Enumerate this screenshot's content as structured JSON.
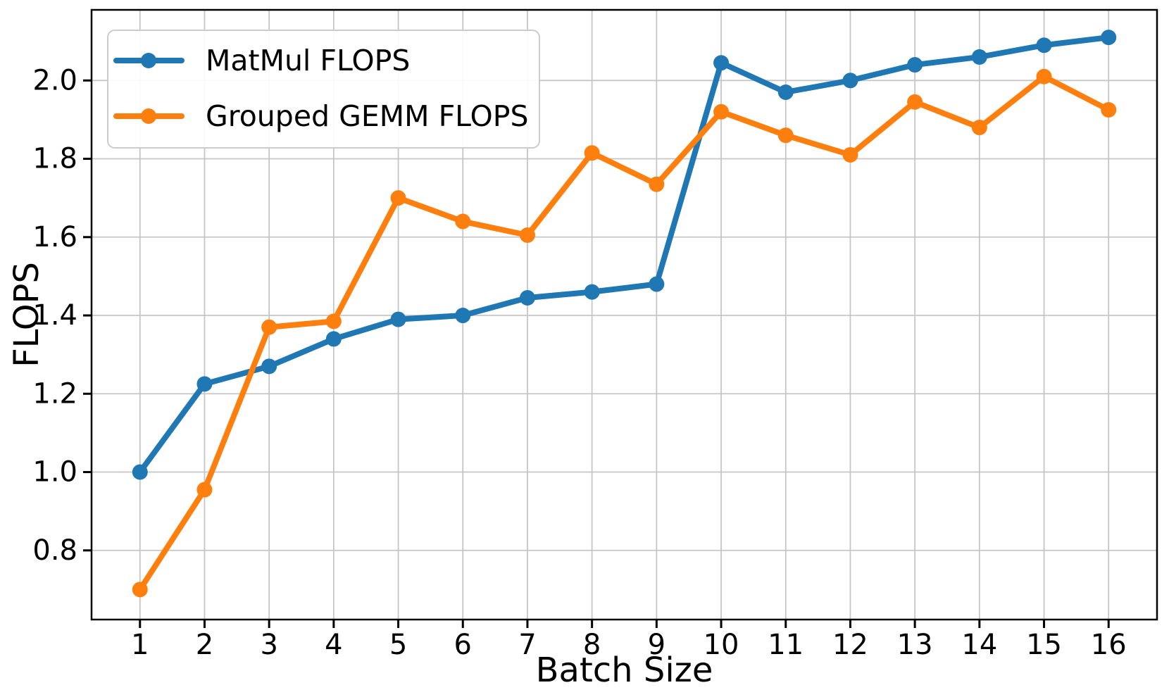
{
  "figure": {
    "background": "#ffffff",
    "type_hint": "matplotlib line chart"
  },
  "chart_data": {
    "type": "line",
    "title": "",
    "xlabel": "Batch Size",
    "ylabel": "FLOPS",
    "x": [
      1,
      2,
      3,
      4,
      5,
      6,
      7,
      8,
      9,
      10,
      11,
      12,
      13,
      14,
      15,
      16
    ],
    "series": [
      {
        "name": "MatMul FLOPS",
        "color": "#1f77b4",
        "values": [
          1.0,
          1.225,
          1.27,
          1.34,
          1.39,
          1.4,
          1.445,
          1.46,
          1.48,
          2.045,
          1.97,
          2.0,
          2.04,
          2.06,
          2.09,
          2.11
        ]
      },
      {
        "name": "Grouped GEMM FLOPS",
        "color": "#ff7f0e",
        "values": [
          0.7,
          0.955,
          1.37,
          1.385,
          1.7,
          1.64,
          1.605,
          1.815,
          1.735,
          1.92,
          1.86,
          1.81,
          1.945,
          1.88,
          2.01,
          1.925
        ]
      }
    ],
    "xlim": [
      0.25,
      16.75
    ],
    "ylim": [
      0.6234,
      2.1803
    ],
    "xticks": [
      1,
      2,
      3,
      4,
      5,
      6,
      7,
      8,
      9,
      10,
      11,
      12,
      13,
      14,
      15,
      16
    ],
    "yticks": [
      0.8,
      1.0,
      1.2,
      1.4,
      1.6,
      1.8,
      2.0
    ],
    "ytick_labels": [
      "0.8",
      "1.0",
      "1.2",
      "1.4",
      "1.6",
      "1.8",
      "2.0"
    ],
    "grid": true,
    "grid_color": "#c6c6c6",
    "axis_color": "#000000",
    "legend_position": "upper left",
    "line_width": 8,
    "marker": "circle",
    "marker_radius": 11
  }
}
